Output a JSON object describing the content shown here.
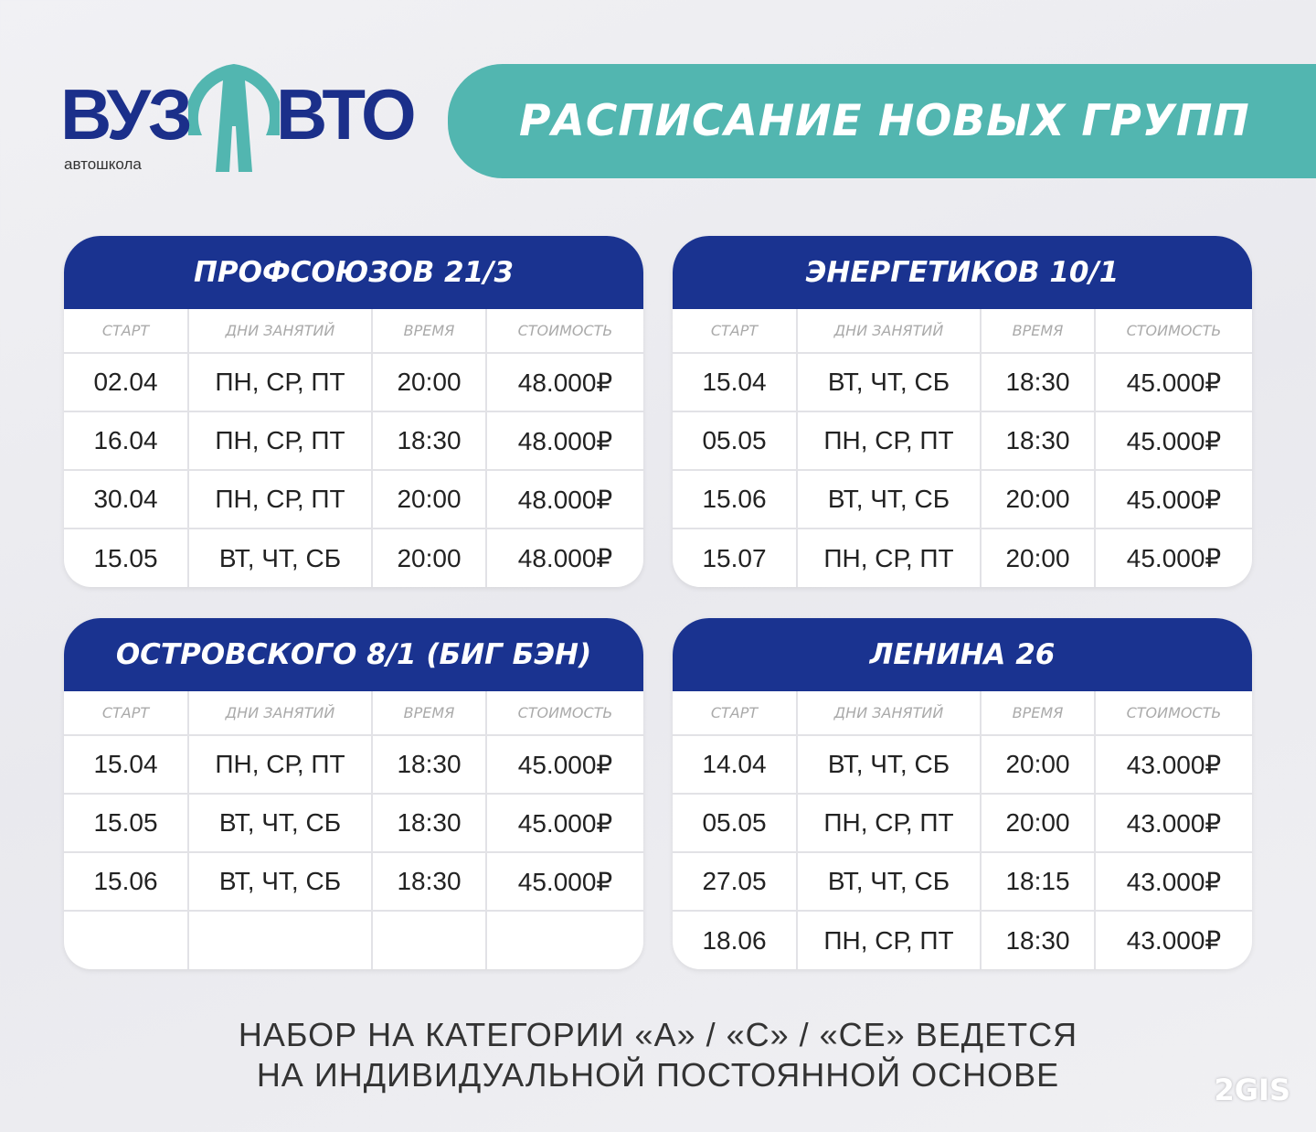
{
  "logo": {
    "word_left": "ВУЗ",
    "letter": "А",
    "word_right": "ВТО",
    "subtitle": "автошкола",
    "colors": {
      "text": "#1b2f8a",
      "accent": "#52b6b0"
    }
  },
  "title": "РАСПИСАНИЕ НОВЫХ ГРУПП",
  "columns": [
    "СТАРТ",
    "ДНИ ЗАНЯТИЙ",
    "ВРЕМЯ",
    "СТОИМОСТЬ"
  ],
  "branches": [
    {
      "name": "ПРОФСОЮЗОВ 21/3",
      "rows": [
        [
          "02.04",
          "ПН, СР, ПТ",
          "20:00",
          "48.000₽"
        ],
        [
          "16.04",
          "ПН, СР, ПТ",
          "18:30",
          "48.000₽"
        ],
        [
          "30.04",
          "ПН, СР, ПТ",
          "20:00",
          "48.000₽"
        ],
        [
          "15.05",
          "ВТ, ЧТ, СБ",
          "20:00",
          "48.000₽"
        ]
      ]
    },
    {
      "name": "ЭНЕРГЕТИКОВ 10/1",
      "rows": [
        [
          "15.04",
          "ВТ, ЧТ, СБ",
          "18:30",
          "45.000₽"
        ],
        [
          "05.05",
          "ПН, СР, ПТ",
          "18:30",
          "45.000₽"
        ],
        [
          "15.06",
          "ВТ, ЧТ, СБ",
          "20:00",
          "45.000₽"
        ],
        [
          "15.07",
          "ПН, СР, ПТ",
          "20:00",
          "45.000₽"
        ]
      ]
    },
    {
      "name": "ОСТРОВСКОГО 8/1 (БИГ БЭН)",
      "rows": [
        [
          "15.04",
          "ПН, СР, ПТ",
          "18:30",
          "45.000₽"
        ],
        [
          "15.05",
          "ВТ, ЧТ, СБ",
          "18:30",
          "45.000₽"
        ],
        [
          "15.06",
          "ВТ, ЧТ, СБ",
          "18:30",
          "45.000₽"
        ],
        [
          "",
          "",
          "",
          ""
        ]
      ]
    },
    {
      "name": "ЛЕНИНА 26",
      "rows": [
        [
          "14.04",
          "ВТ, ЧТ, СБ",
          "20:00",
          "43.000₽"
        ],
        [
          "05.05",
          "ПН, СР, ПТ",
          "20:00",
          "43.000₽"
        ],
        [
          "27.05",
          "ВТ, ЧТ, СБ",
          "18:15",
          "43.000₽"
        ],
        [
          "18.06",
          "ПН, СР, ПТ",
          "18:30",
          "43.000₽"
        ]
      ]
    }
  ],
  "footer": {
    "line1": "НАБОР НА КАТЕГОРИИ «А» / «С» / «СЕ» ВЕДЕТСЯ",
    "line2": "НА ИНДИВИДУАЛЬНОЙ ПОСТОЯННОЙ ОСНОВЕ"
  },
  "watermark": "2GIS"
}
